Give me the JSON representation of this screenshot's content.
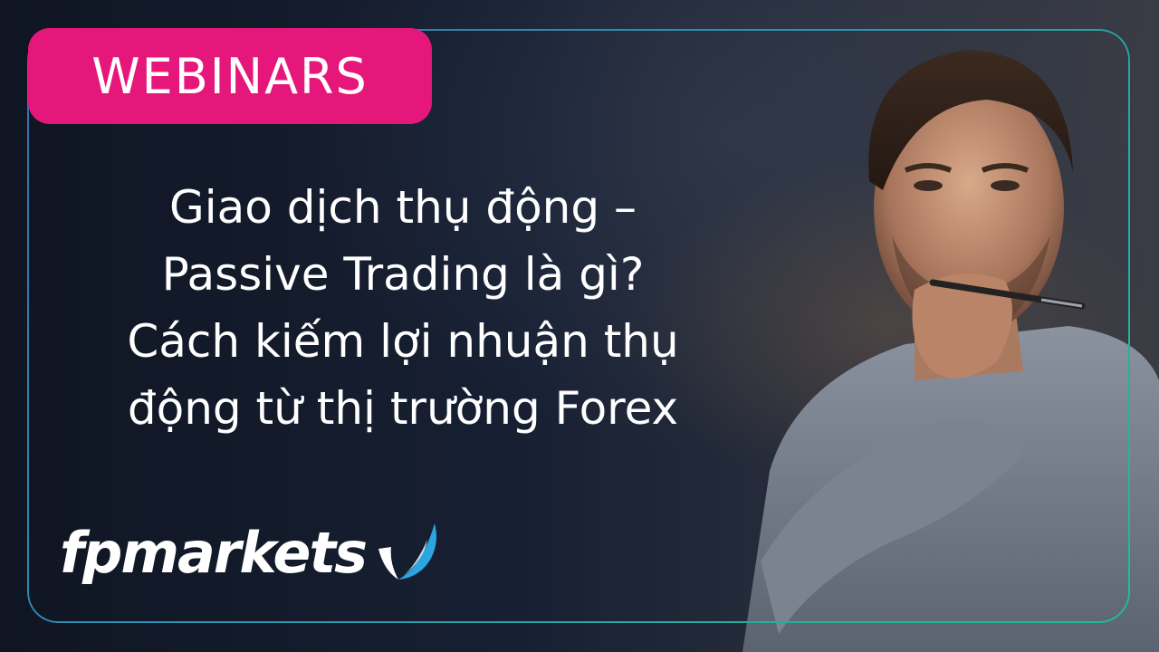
{
  "badge": {
    "label": "WEBINARS"
  },
  "headline": {
    "lines": [
      "Giao dịch thụ động –",
      "Passive Trading là gì?",
      "Cách kiếm lợi nhuận thụ",
      "động từ thị trường Forex"
    ]
  },
  "logo": {
    "text": "fpmarkets",
    "icon": "checkmark-swoosh-icon"
  },
  "photo": {
    "subject": "thinking-man-icon"
  },
  "colors": {
    "badge_bg": "#e6177a",
    "frame_start": "#3a6ea8",
    "frame_end": "#1fbf8f",
    "logo_mark": "#2aa6e0",
    "background": "#141a26"
  }
}
